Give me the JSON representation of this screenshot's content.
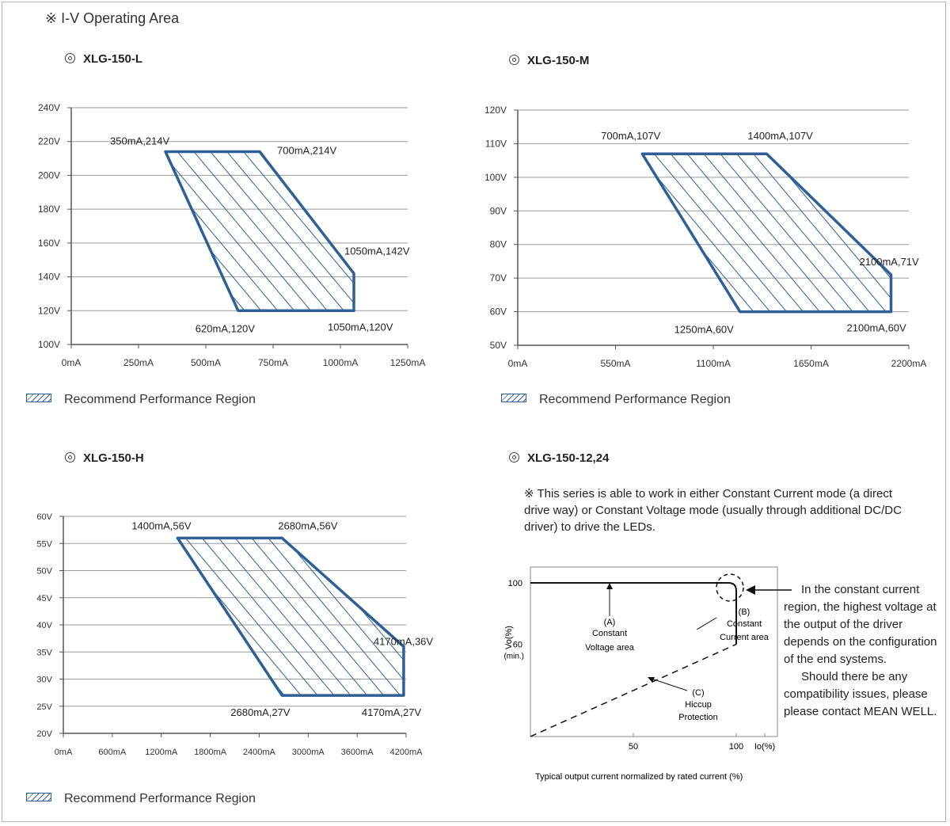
{
  "page": {
    "section_title": "※ I-V Operating Area",
    "legend_label": "Recommend Performance Region"
  },
  "chart_data": [
    {
      "type": "area",
      "title": "XLG-150-L",
      "xlabel": "",
      "ylabel": "",
      "x_ticks": [
        "0mA",
        "250mA",
        "500mA",
        "750mA",
        "1000mA",
        "1250mA"
      ],
      "y_ticks": [
        "100V",
        "120V",
        "140V",
        "160V",
        "180V",
        "200V",
        "220V",
        "240V"
      ],
      "xlim": [
        0,
        1250
      ],
      "ylim": [
        100,
        240
      ],
      "grid": true,
      "region": [
        {
          "x": 350,
          "y": 214,
          "label": "350mA,214V"
        },
        {
          "x": 700,
          "y": 214,
          "label": "700mA,214V"
        },
        {
          "x": 1050,
          "y": 142,
          "label": "1050mA,142V"
        },
        {
          "x": 1050,
          "y": 120,
          "label": "1050mA,120V"
        },
        {
          "x": 620,
          "y": 120,
          "label": "620mA,120V"
        }
      ],
      "legend": "Recommend Performance Region"
    },
    {
      "type": "area",
      "title": "XLG-150-M",
      "xlabel": "",
      "ylabel": "",
      "x_ticks": [
        "0mA",
        "550mA",
        "1100mA",
        "1650mA",
        "2200mA"
      ],
      "y_ticks": [
        "50V",
        "60V",
        "70V",
        "80V",
        "90V",
        "100V",
        "110V",
        "120V"
      ],
      "xlim": [
        0,
        2200
      ],
      "ylim": [
        50,
        120
      ],
      "grid": true,
      "region": [
        {
          "x": 700,
          "y": 107,
          "label": "700mA,107V"
        },
        {
          "x": 1400,
          "y": 107,
          "label": "1400mA,107V"
        },
        {
          "x": 2100,
          "y": 71,
          "label": "2100mA,71V"
        },
        {
          "x": 2100,
          "y": 60,
          "label": "2100mA,60V"
        },
        {
          "x": 1250,
          "y": 60,
          "label": "1250mA,60V"
        }
      ],
      "legend": "Recommend Performance Region"
    },
    {
      "type": "area",
      "title": "XLG-150-H",
      "xlabel": "",
      "ylabel": "",
      "x_ticks": [
        "0mA",
        "600mA",
        "1200mA",
        "1800mA",
        "2400mA",
        "3000mA",
        "3600mA",
        "4200mA"
      ],
      "y_ticks": [
        "20V",
        "25V",
        "30V",
        "35V",
        "40V",
        "45V",
        "50V",
        "55V",
        "60V"
      ],
      "xlim": [
        0,
        4200
      ],
      "ylim": [
        20,
        60
      ],
      "grid": true,
      "region": [
        {
          "x": 1400,
          "y": 56,
          "label": "1400mA,56V"
        },
        {
          "x": 2680,
          "y": 56,
          "label": "2680mA,56V"
        },
        {
          "x": 4170,
          "y": 36,
          "label": "4170mA,36V"
        },
        {
          "x": 4170,
          "y": 27,
          "label": "4170mA,27V"
        },
        {
          "x": 2680,
          "y": 27,
          "label": "2680mA,27V"
        }
      ],
      "legend": "Recommend Performance Region"
    },
    {
      "type": "line",
      "title": "XLG-150-12,24",
      "note": "※ This series is able to work in either Constant Current mode (a direct drive way) or  Constant Voltage mode (usually through additional DC/DC driver) to drive the LEDs.",
      "xlabel": "Io(%)",
      "ylabel": "Vo(%)",
      "caption": "Typical output current normalized by rated current (%)",
      "x_ticks": [
        "50",
        "100"
      ],
      "y_ticks": [
        "100",
        "60",
        "(min.)"
      ],
      "xlim": [
        0,
        120
      ],
      "ylim": [
        0,
        100
      ],
      "series": [
        {
          "style": "solid",
          "x": [
            0,
            100,
            100
          ],
          "y": [
            100,
            100,
            60
          ]
        },
        {
          "style": "dashed",
          "x": [
            0,
            100
          ],
          "y": [
            0,
            60
          ]
        }
      ],
      "annotations": [
        "(A)",
        "Constant",
        "Voltage area",
        "(B)",
        "Constant",
        "Current area",
        "(C)",
        "Hiccup",
        "Protection"
      ],
      "side_note": [
        "In the constant current region, the highest voltage at the output of the driver depends on the configuration of the end systems.",
        "Should there be any compatibility issues, please please contact MEAN WELL."
      ]
    }
  ],
  "colors": {
    "region_stroke": "#2f5f95",
    "grid": "#9a9a9a",
    "axis": "#555555",
    "text": "#222222"
  }
}
